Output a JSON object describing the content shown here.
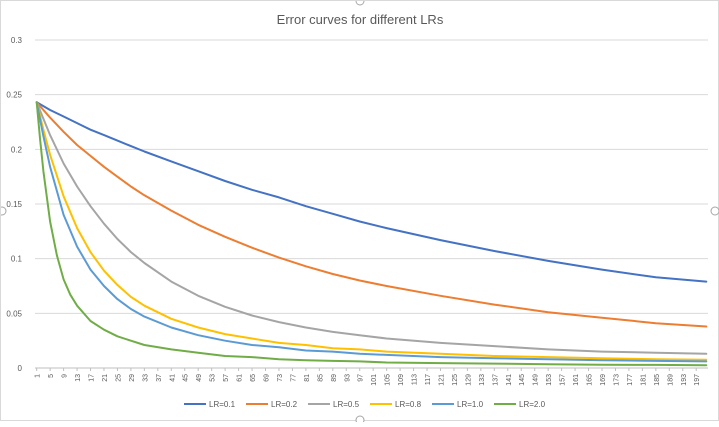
{
  "chart_data": {
    "type": "line",
    "title": "Error curves for different LRs",
    "xlabel": "",
    "ylabel": "",
    "ylim": [
      0,
      0.3
    ],
    "yticks": [
      0,
      0.05,
      0.1,
      0.15,
      0.2,
      0.25,
      0.3
    ],
    "ytick_labels": [
      "0",
      "0.05",
      "0.1",
      "0.15",
      "0.2",
      "0.25",
      "0.3"
    ],
    "xlim": [
      1,
      200
    ],
    "xticks": [
      1,
      5,
      9,
      13,
      17,
      21,
      25,
      29,
      33,
      37,
      41,
      45,
      49,
      53,
      57,
      61,
      65,
      69,
      73,
      77,
      81,
      85,
      89,
      93,
      97,
      101,
      105,
      109,
      113,
      117,
      121,
      125,
      129,
      133,
      137,
      141,
      145,
      149,
      153,
      157,
      161,
      165,
      169,
      173,
      177,
      181,
      185,
      189,
      193,
      197
    ],
    "grid": "horizontal",
    "legend_position": "bottom",
    "series": [
      {
        "name": "LR=0.1",
        "color": "#4472c4",
        "x": [
          1,
          5,
          9,
          13,
          17,
          21,
          25,
          29,
          33,
          41,
          49,
          57,
          65,
          73,
          81,
          89,
          97,
          105,
          121,
          137,
          153,
          169,
          185,
          200
        ],
        "values": [
          0.243,
          0.236,
          0.23,
          0.224,
          0.218,
          0.213,
          0.208,
          0.203,
          0.198,
          0.189,
          0.18,
          0.171,
          0.163,
          0.156,
          0.148,
          0.141,
          0.134,
          0.128,
          0.117,
          0.107,
          0.098,
          0.09,
          0.083,
          0.079
        ]
      },
      {
        "name": "LR=0.2",
        "color": "#ed7d31",
        "x": [
          1,
          5,
          9,
          13,
          17,
          21,
          25,
          29,
          33,
          41,
          49,
          57,
          65,
          73,
          81,
          89,
          97,
          105,
          121,
          137,
          153,
          169,
          185,
          200
        ],
        "values": [
          0.243,
          0.229,
          0.216,
          0.204,
          0.194,
          0.184,
          0.175,
          0.166,
          0.158,
          0.144,
          0.131,
          0.12,
          0.11,
          0.101,
          0.093,
          0.086,
          0.08,
          0.075,
          0.066,
          0.058,
          0.051,
          0.046,
          0.041,
          0.038
        ]
      },
      {
        "name": "LR=0.5",
        "color": "#a5a5a5",
        "x": [
          1,
          3,
          5,
          9,
          13,
          17,
          21,
          25,
          29,
          33,
          41,
          49,
          57,
          65,
          73,
          81,
          89,
          97,
          105,
          121,
          137,
          153,
          169,
          185,
          200
        ],
        "values": [
          0.243,
          0.228,
          0.213,
          0.187,
          0.166,
          0.148,
          0.132,
          0.118,
          0.106,
          0.096,
          0.079,
          0.066,
          0.056,
          0.048,
          0.042,
          0.037,
          0.033,
          0.03,
          0.027,
          0.023,
          0.02,
          0.017,
          0.015,
          0.014,
          0.013
        ]
      },
      {
        "name": "LR=0.8",
        "color": "#ffc000",
        "x": [
          1,
          3,
          5,
          9,
          13,
          17,
          21,
          25,
          29,
          33,
          41,
          49,
          57,
          65,
          73,
          81,
          89,
          97,
          105,
          121,
          137,
          153,
          169,
          185,
          200
        ],
        "values": [
          0.243,
          0.218,
          0.195,
          0.157,
          0.128,
          0.106,
          0.089,
          0.076,
          0.065,
          0.057,
          0.045,
          0.037,
          0.031,
          0.027,
          0.023,
          0.021,
          0.018,
          0.017,
          0.015,
          0.013,
          0.011,
          0.01,
          0.009,
          0.008,
          0.0075
        ]
      },
      {
        "name": "LR=1.0",
        "color": "#5b9bd5",
        "x": [
          1,
          3,
          5,
          9,
          13,
          17,
          21,
          25,
          29,
          33,
          41,
          49,
          57,
          65,
          73,
          81,
          89,
          97,
          105,
          121,
          137,
          153,
          169,
          185,
          200
        ],
        "values": [
          0.243,
          0.212,
          0.184,
          0.14,
          0.111,
          0.09,
          0.075,
          0.063,
          0.054,
          0.047,
          0.037,
          0.03,
          0.025,
          0.021,
          0.019,
          0.016,
          0.015,
          0.013,
          0.012,
          0.01,
          0.009,
          0.008,
          0.007,
          0.0065,
          0.006
        ]
      },
      {
        "name": "LR=2.0",
        "color": "#70ad47",
        "x": [
          1,
          2,
          3,
          5,
          7,
          9,
          11,
          13,
          17,
          21,
          25,
          29,
          33,
          41,
          49,
          57,
          65,
          73,
          81,
          89,
          97,
          105,
          121,
          137,
          153,
          169,
          185,
          200
        ],
        "values": [
          0.243,
          0.21,
          0.18,
          0.134,
          0.103,
          0.081,
          0.067,
          0.057,
          0.043,
          0.035,
          0.029,
          0.025,
          0.021,
          0.017,
          0.014,
          0.011,
          0.01,
          0.008,
          0.007,
          0.0065,
          0.006,
          0.005,
          0.0045,
          0.004,
          0.0035,
          0.003,
          0.0028,
          0.0026
        ]
      }
    ]
  }
}
